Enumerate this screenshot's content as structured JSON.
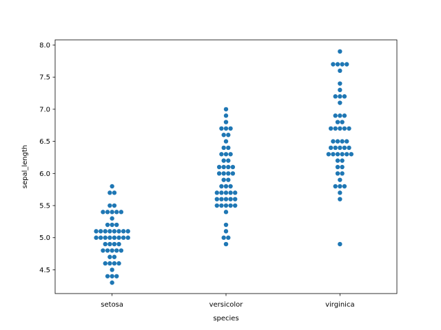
{
  "chart_data": {
    "type": "scatter",
    "subtype": "swarm",
    "title": "",
    "xlabel": "species",
    "ylabel": "sepal_length",
    "categories": [
      "setosa",
      "versicolor",
      "virginica"
    ],
    "ylim": [
      4.13,
      8.08
    ],
    "yticks": [
      "4.5",
      "5.0",
      "5.5",
      "6.0",
      "6.5",
      "7.0",
      "7.5",
      "8.0"
    ],
    "grid": false,
    "point_color": "#1f77b4",
    "series": [
      {
        "category": "setosa",
        "values": [
          5.1,
          4.9,
          4.7,
          4.6,
          5.0,
          5.4,
          4.6,
          5.0,
          4.4,
          4.9,
          5.4,
          4.8,
          4.8,
          4.3,
          5.8,
          5.7,
          5.4,
          5.1,
          5.7,
          5.1,
          5.4,
          5.1,
          4.6,
          5.1,
          4.8,
          5.0,
          5.0,
          5.2,
          5.2,
          4.7,
          4.8,
          5.4,
          5.2,
          5.5,
          4.9,
          5.0,
          5.5,
          4.9,
          4.4,
          5.1,
          5.0,
          4.5,
          4.4,
          5.0,
          5.1,
          4.8,
          5.1,
          4.6,
          5.3,
          5.0
        ]
      },
      {
        "category": "versicolor",
        "values": [
          7.0,
          6.4,
          6.9,
          5.5,
          6.5,
          5.7,
          6.3,
          4.9,
          6.6,
          5.2,
          5.0,
          5.9,
          6.0,
          6.1,
          5.6,
          6.7,
          5.6,
          5.8,
          6.2,
          5.6,
          5.9,
          6.1,
          6.3,
          6.1,
          6.4,
          6.6,
          6.8,
          6.7,
          6.0,
          5.7,
          5.5,
          5.5,
          5.8,
          6.0,
          5.4,
          6.0,
          6.7,
          6.3,
          5.6,
          5.5,
          5.5,
          6.1,
          5.8,
          5.0,
          5.6,
          5.7,
          5.7,
          6.2,
          5.1,
          5.7
        ]
      },
      {
        "category": "virginica",
        "values": [
          6.3,
          5.8,
          7.1,
          6.3,
          6.5,
          7.6,
          4.9,
          7.3,
          6.7,
          7.2,
          6.5,
          6.4,
          6.8,
          5.7,
          5.8,
          6.4,
          6.5,
          7.7,
          7.7,
          6.0,
          6.9,
          5.6,
          7.7,
          6.3,
          6.7,
          7.2,
          6.2,
          6.1,
          6.4,
          7.2,
          7.4,
          7.9,
          6.4,
          6.3,
          6.1,
          7.7,
          6.3,
          6.4,
          6.0,
          6.9,
          6.7,
          6.9,
          5.8,
          6.8,
          6.7,
          6.7,
          6.3,
          6.5,
          6.2,
          5.9
        ]
      }
    ]
  }
}
